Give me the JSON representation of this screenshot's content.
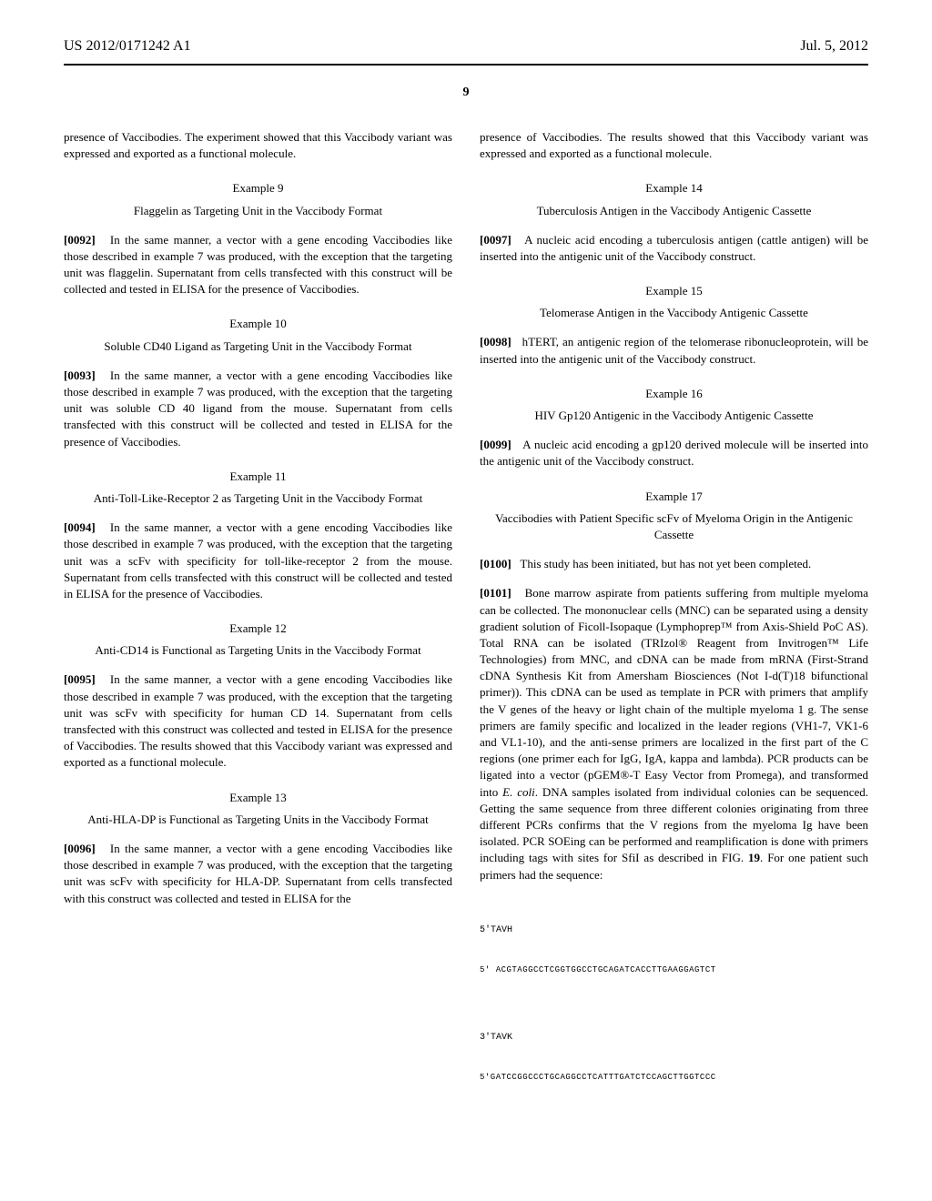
{
  "header": {
    "pub_number": "US 2012/0171242 A1",
    "date": "Jul. 5, 2012"
  },
  "page_number": "9",
  "left_col": {
    "p_intro": "presence of Vaccibodies. The experiment showed that this Vaccibody variant was expressed and exported as a functional molecule.",
    "ex9": {
      "label": "Example 9",
      "title": "Flaggelin as Targeting Unit in the Vaccibody Format",
      "num": "[0092]",
      "text": "In the same manner, a vector with a gene encoding Vaccibodies like those described in example 7 was produced, with the exception that the targeting unit was flaggelin. Supernatant from cells transfected with this construct will be collected and tested in ELISA for the presence of Vaccibodies."
    },
    "ex10": {
      "label": "Example 10",
      "title": "Soluble CD40 Ligand as Targeting Unit in the Vaccibody Format",
      "num": "[0093]",
      "text": "In the same manner, a vector with a gene encoding Vaccibodies like those described in example 7 was produced, with the exception that the targeting unit was soluble CD 40 ligand from the mouse. Supernatant from cells transfected with this construct will be collected and tested in ELISA for the presence of Vaccibodies."
    },
    "ex11": {
      "label": "Example 11",
      "title": "Anti-Toll-Like-Receptor 2 as Targeting Unit in the Vaccibody Format",
      "num": "[0094]",
      "text": "In the same manner, a vector with a gene encoding Vaccibodies like those described in example 7 was produced, with the exception that the targeting unit was a scFv with specificity for toll-like-receptor 2 from the mouse. Supernatant from cells transfected with this construct will be collected and tested in ELISA for the presence of Vaccibodies."
    },
    "ex12": {
      "label": "Example 12",
      "title": "Anti-CD14 is Functional as Targeting Units in the Vaccibody Format",
      "num": "[0095]",
      "text": "In the same manner, a vector with a gene encoding Vaccibodies like those described in example 7 was produced, with the exception that the targeting unit was scFv with specificity for human CD 14. Supernatant from cells transfected with this construct was collected and tested in ELISA for the presence of Vaccibodies. The results showed that this Vaccibody variant was expressed and exported as a functional molecule."
    },
    "ex13": {
      "label": "Example 13",
      "title": "Anti-HLA-DP is Functional as Targeting Units in the Vaccibody Format",
      "num": "[0096]",
      "text": "In the same manner, a vector with a gene encoding Vaccibodies like those described in example 7 was produced, with the exception that the targeting unit was scFv with specificity for HLA-DP. Supernatant from cells transfected with this construct was collected and tested in ELISA for the"
    }
  },
  "right_col": {
    "p_intro": "presence of Vaccibodies. The results showed that this Vaccibody variant was expressed and exported as a functional molecule.",
    "ex14": {
      "label": "Example 14",
      "title": "Tuberculosis Antigen in the Vaccibody Antigenic Cassette",
      "num": "[0097]",
      "text": "A nucleic acid encoding a tuberculosis antigen (cattle antigen) will be inserted into the antigenic unit of the Vaccibody construct."
    },
    "ex15": {
      "label": "Example 15",
      "title": "Telomerase Antigen in the Vaccibody Antigenic Cassette",
      "num": "[0098]",
      "text": "hTERT, an antigenic region of the telomerase ribonucleoprotein, will be inserted into the antigenic unit of the Vaccibody construct."
    },
    "ex16": {
      "label": "Example 16",
      "title": "HIV Gp120 Antigenic in the Vaccibody Antigenic Cassette",
      "num": "[0099]",
      "text": "A nucleic acid encoding a gp120 derived molecule will be inserted into the antigenic unit of the Vaccibody construct."
    },
    "ex17": {
      "label": "Example 17",
      "title": "Vaccibodies with Patient Specific scFv of Myeloma Origin in the Antigenic Cassette",
      "num1": "[0100]",
      "text1": "This study has been initiated, but has not yet been completed.",
      "num2": "[0101]",
      "text2": "Bone marrow aspirate from patients suffering from multiple myeloma can be collected. The mononuclear cells (MNC) can be separated using a density gradient solution of Ficoll-Isopaque (Lymphoprep™ from Axis-Shield PoC AS). Total RNA can be isolated (TRIzol® Reagent from Invitrogen™ Life Technologies) from MNC, and cDNA can be made from mRNA (First-Strand cDNA Synthesis Kit from Amersham Biosciences (Not I-d(T)18 bifunctional primer)). This cDNA can be used as template in PCR with primers that amplify the V genes of the heavy or light chain of the multiple myeloma 1 g. The sense primers are family specific and localized in the leader regions (VH1-7, VK1-6 and VL1-10), and the anti-sense primers are localized in the first part of the C regions (one primer each for IgG, IgA, kappa and lambda). PCR products can be ligated into a vector (pGEM®-T Easy Vector from Promega), and transformed into ",
      "text2_italic": "E. coli",
      "text2_cont": ". DNA samples isolated from individual colonies can be sequenced. Getting the same sequence from three different colonies originating from three different PCRs confirms that the V regions from the myeloma Ig have been isolated. PCR SOEing can be performed and reamplification is done with primers including tags with sites for SfiI as described in FIG. ",
      "text2_bold": "19",
      "text2_end": ". For one patient such primers had the sequence:"
    },
    "seq": {
      "label1": "5'TAVH",
      "seq1": "5' ACGTAGGCCTCGGTGGCCTGCAGATCACCTTGAAGGAGTCT",
      "label2": "3'TAVK",
      "seq2": "5'GATCCGGCCCTGCAGGCCTCATTTGATCTCCAGCTTGGTCCC"
    }
  }
}
